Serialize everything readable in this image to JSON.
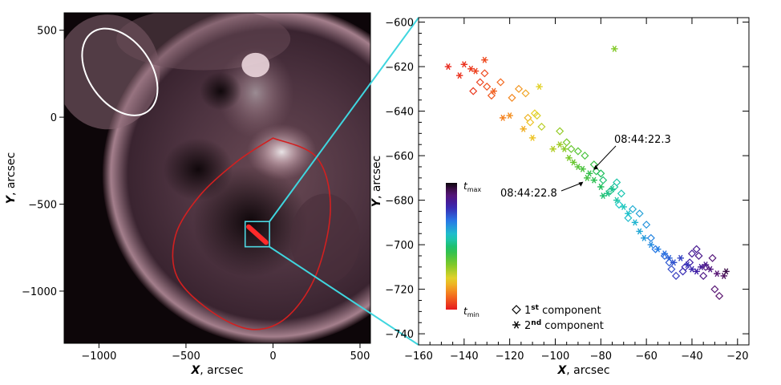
{
  "figure": {
    "connector_color": "#3fd6df"
  },
  "chart_data": [
    {
      "type": "image",
      "panel": "left",
      "xlabel": "X, arcsec",
      "ylabel": "Y, arcsec",
      "xlim": [
        -1200,
        560
      ],
      "ylim": [
        -1300,
        600
      ],
      "xticks": [
        -1000,
        -500,
        0,
        500
      ],
      "xtick_labels": [
        "−1000",
        "−500",
        "0",
        "500"
      ],
      "yticks": [
        500,
        0,
        -500,
        -1000
      ],
      "ytick_labels": [
        "500",
        "0",
        "−500",
        "−1000"
      ],
      "image_tint": "#b9909c",
      "annotations": [
        {
          "kind": "ellipse",
          "color": "#ffffff",
          "cx": -880,
          "cy": 260,
          "rx": 290,
          "ry": 370,
          "rotate": -35
        },
        {
          "kind": "closed-curve",
          "color": "#d22020",
          "points": [
            [
              0,
              -120
            ],
            [
              250,
              -230
            ],
            [
              330,
              -520
            ],
            [
              250,
              -900
            ],
            [
              80,
              -1150
            ],
            [
              -120,
              -1220
            ],
            [
              -350,
              -1120
            ],
            [
              -550,
              -920
            ],
            [
              -560,
              -680
            ],
            [
              -420,
              -450
            ],
            [
              -200,
              -250
            ],
            [
              0,
              -120
            ]
          ]
        },
        {
          "kind": "box",
          "color": "#4ed8e2",
          "x": [
            -160,
            -20
          ],
          "y": [
            -745,
            -600
          ]
        },
        {
          "kind": "blob",
          "color": "#ff2a2a",
          "from": [
            -140,
            -630
          ],
          "to": [
            -40,
            -720
          ]
        }
      ]
    },
    {
      "type": "scatter",
      "panel": "right",
      "xlabel": "X, arcsec",
      "ylabel": "Y, arcsec",
      "xlim": [
        -160,
        -15
      ],
      "ylim": [
        -745,
        -598
      ],
      "xticks": [
        -160,
        -140,
        -120,
        -100,
        -80,
        -60,
        -40,
        -20
      ],
      "xtick_labels": [
        "−160",
        "−140",
        "−120",
        "−100",
        "−80",
        "−60",
        "−40",
        "−20"
      ],
      "yticks": [
        -600,
        -620,
        -640,
        -660,
        -680,
        -700,
        -720,
        -740
      ],
      "ytick_labels": [
        "−600",
        "−620",
        "−640",
        "−660",
        "−680",
        "−700",
        "−720",
        "−740"
      ],
      "color_scale": "t_min (red) → t_max (black)",
      "colorbar": {
        "top_label": "t",
        "top_sub": "max",
        "bottom_label": "t",
        "bottom_sub": "min"
      },
      "legend": [
        {
          "marker": "diamond",
          "label": "1",
          "sup": "st",
          "suffix": " component"
        },
        {
          "marker": "asterisk",
          "label": "2",
          "sup": "nd",
          "suffix": " component"
        }
      ],
      "legend_position": "bottom-right",
      "annotations": [
        {
          "text": "08:44:22.3",
          "x": -84,
          "y": -667
        },
        {
          "text": "08:44:22.8",
          "x": -87,
          "y": -671
        }
      ],
      "series": [
        {
          "name": "1st component",
          "marker": "diamond",
          "x": [
            -136,
            -133,
            -131,
            -130,
            -128,
            -124,
            -119,
            -116,
            -113,
            -112,
            -111,
            -109,
            -108,
            -106,
            -98,
            -95,
            -93,
            -90,
            -87,
            -83,
            -82,
            -80,
            -79,
            -76,
            -74,
            -73,
            -71,
            -72,
            -68,
            -66,
            -63,
            -60,
            -58,
            -56,
            -52,
            -50,
            -49,
            -47,
            -44,
            -43,
            -41,
            -40,
            -38,
            -37,
            -35,
            -34,
            -31,
            -30,
            -28
          ],
          "y": [
            -631,
            -627,
            -623,
            -629,
            -633,
            -627,
            -634,
            -630,
            -632,
            -643,
            -645,
            -641,
            -642,
            -647,
            -649,
            -654,
            -657,
            -658,
            -660,
            -664,
            -667,
            -668,
            -671,
            -676,
            -674,
            -672,
            -677,
            -682,
            -688,
            -684,
            -686,
            -691,
            -697,
            -702,
            -705,
            -708,
            -711,
            -714,
            -712,
            -710,
            -708,
            -704,
            -702,
            -705,
            -714,
            -710,
            -706,
            -720,
            -723
          ],
          "t": [
            0.04,
            0.05,
            0.06,
            0.07,
            0.08,
            0.1,
            0.14,
            0.16,
            0.18,
            0.2,
            0.22,
            0.24,
            0.26,
            0.29,
            0.33,
            0.36,
            0.38,
            0.4,
            0.42,
            0.44,
            0.46,
            0.48,
            0.5,
            0.52,
            0.54,
            0.55,
            0.56,
            0.58,
            0.6,
            0.62,
            0.64,
            0.66,
            0.68,
            0.7,
            0.72,
            0.74,
            0.76,
            0.78,
            0.8,
            0.81,
            0.83,
            0.85,
            0.86,
            0.87,
            0.88,
            0.89,
            0.9,
            0.91,
            0.92
          ]
        },
        {
          "name": "2nd component",
          "marker": "asterisk",
          "x": [
            -147,
            -142,
            -140,
            -137,
            -135,
            -131,
            -127,
            -123,
            -120,
            -114,
            -110,
            -107,
            -101,
            -98,
            -96,
            -94,
            -92,
            -90,
            -88,
            -86,
            -85,
            -83,
            -80,
            -79,
            -77,
            -75,
            -74,
            -73,
            -70,
            -68,
            -65,
            -63,
            -61,
            -58,
            -55,
            -52,
            -50,
            -48,
            -45,
            -42,
            -40,
            -38,
            -36,
            -34,
            -32,
            -29,
            -26,
            -25
          ],
          "y": [
            -620,
            -624,
            -619,
            -621,
            -622,
            -617,
            -631,
            -643,
            -642,
            -648,
            -652,
            -629,
            -657,
            -655,
            -657,
            -661,
            -663,
            -665,
            -666,
            -670,
            -668,
            -671,
            -674,
            -678,
            -677,
            -675,
            -612,
            -680,
            -683,
            -686,
            -690,
            -694,
            -697,
            -700,
            -702,
            -704,
            -706,
            -708,
            -706,
            -709,
            -711,
            -712,
            -710,
            -709,
            -711,
            -713,
            -714,
            -712
          ],
          "t": [
            0.02,
            0.03,
            0.03,
            0.04,
            0.05,
            0.06,
            0.09,
            0.13,
            0.15,
            0.19,
            0.22,
            0.25,
            0.3,
            0.32,
            0.34,
            0.36,
            0.38,
            0.4,
            0.42,
            0.43,
            0.45,
            0.46,
            0.48,
            0.5,
            0.52,
            0.53,
            0.35,
            0.55,
            0.57,
            0.59,
            0.61,
            0.63,
            0.65,
            0.67,
            0.69,
            0.71,
            0.73,
            0.75,
            0.77,
            0.79,
            0.81,
            0.83,
            0.85,
            0.87,
            0.89,
            0.91,
            0.93,
            0.95
          ]
        }
      ]
    }
  ]
}
